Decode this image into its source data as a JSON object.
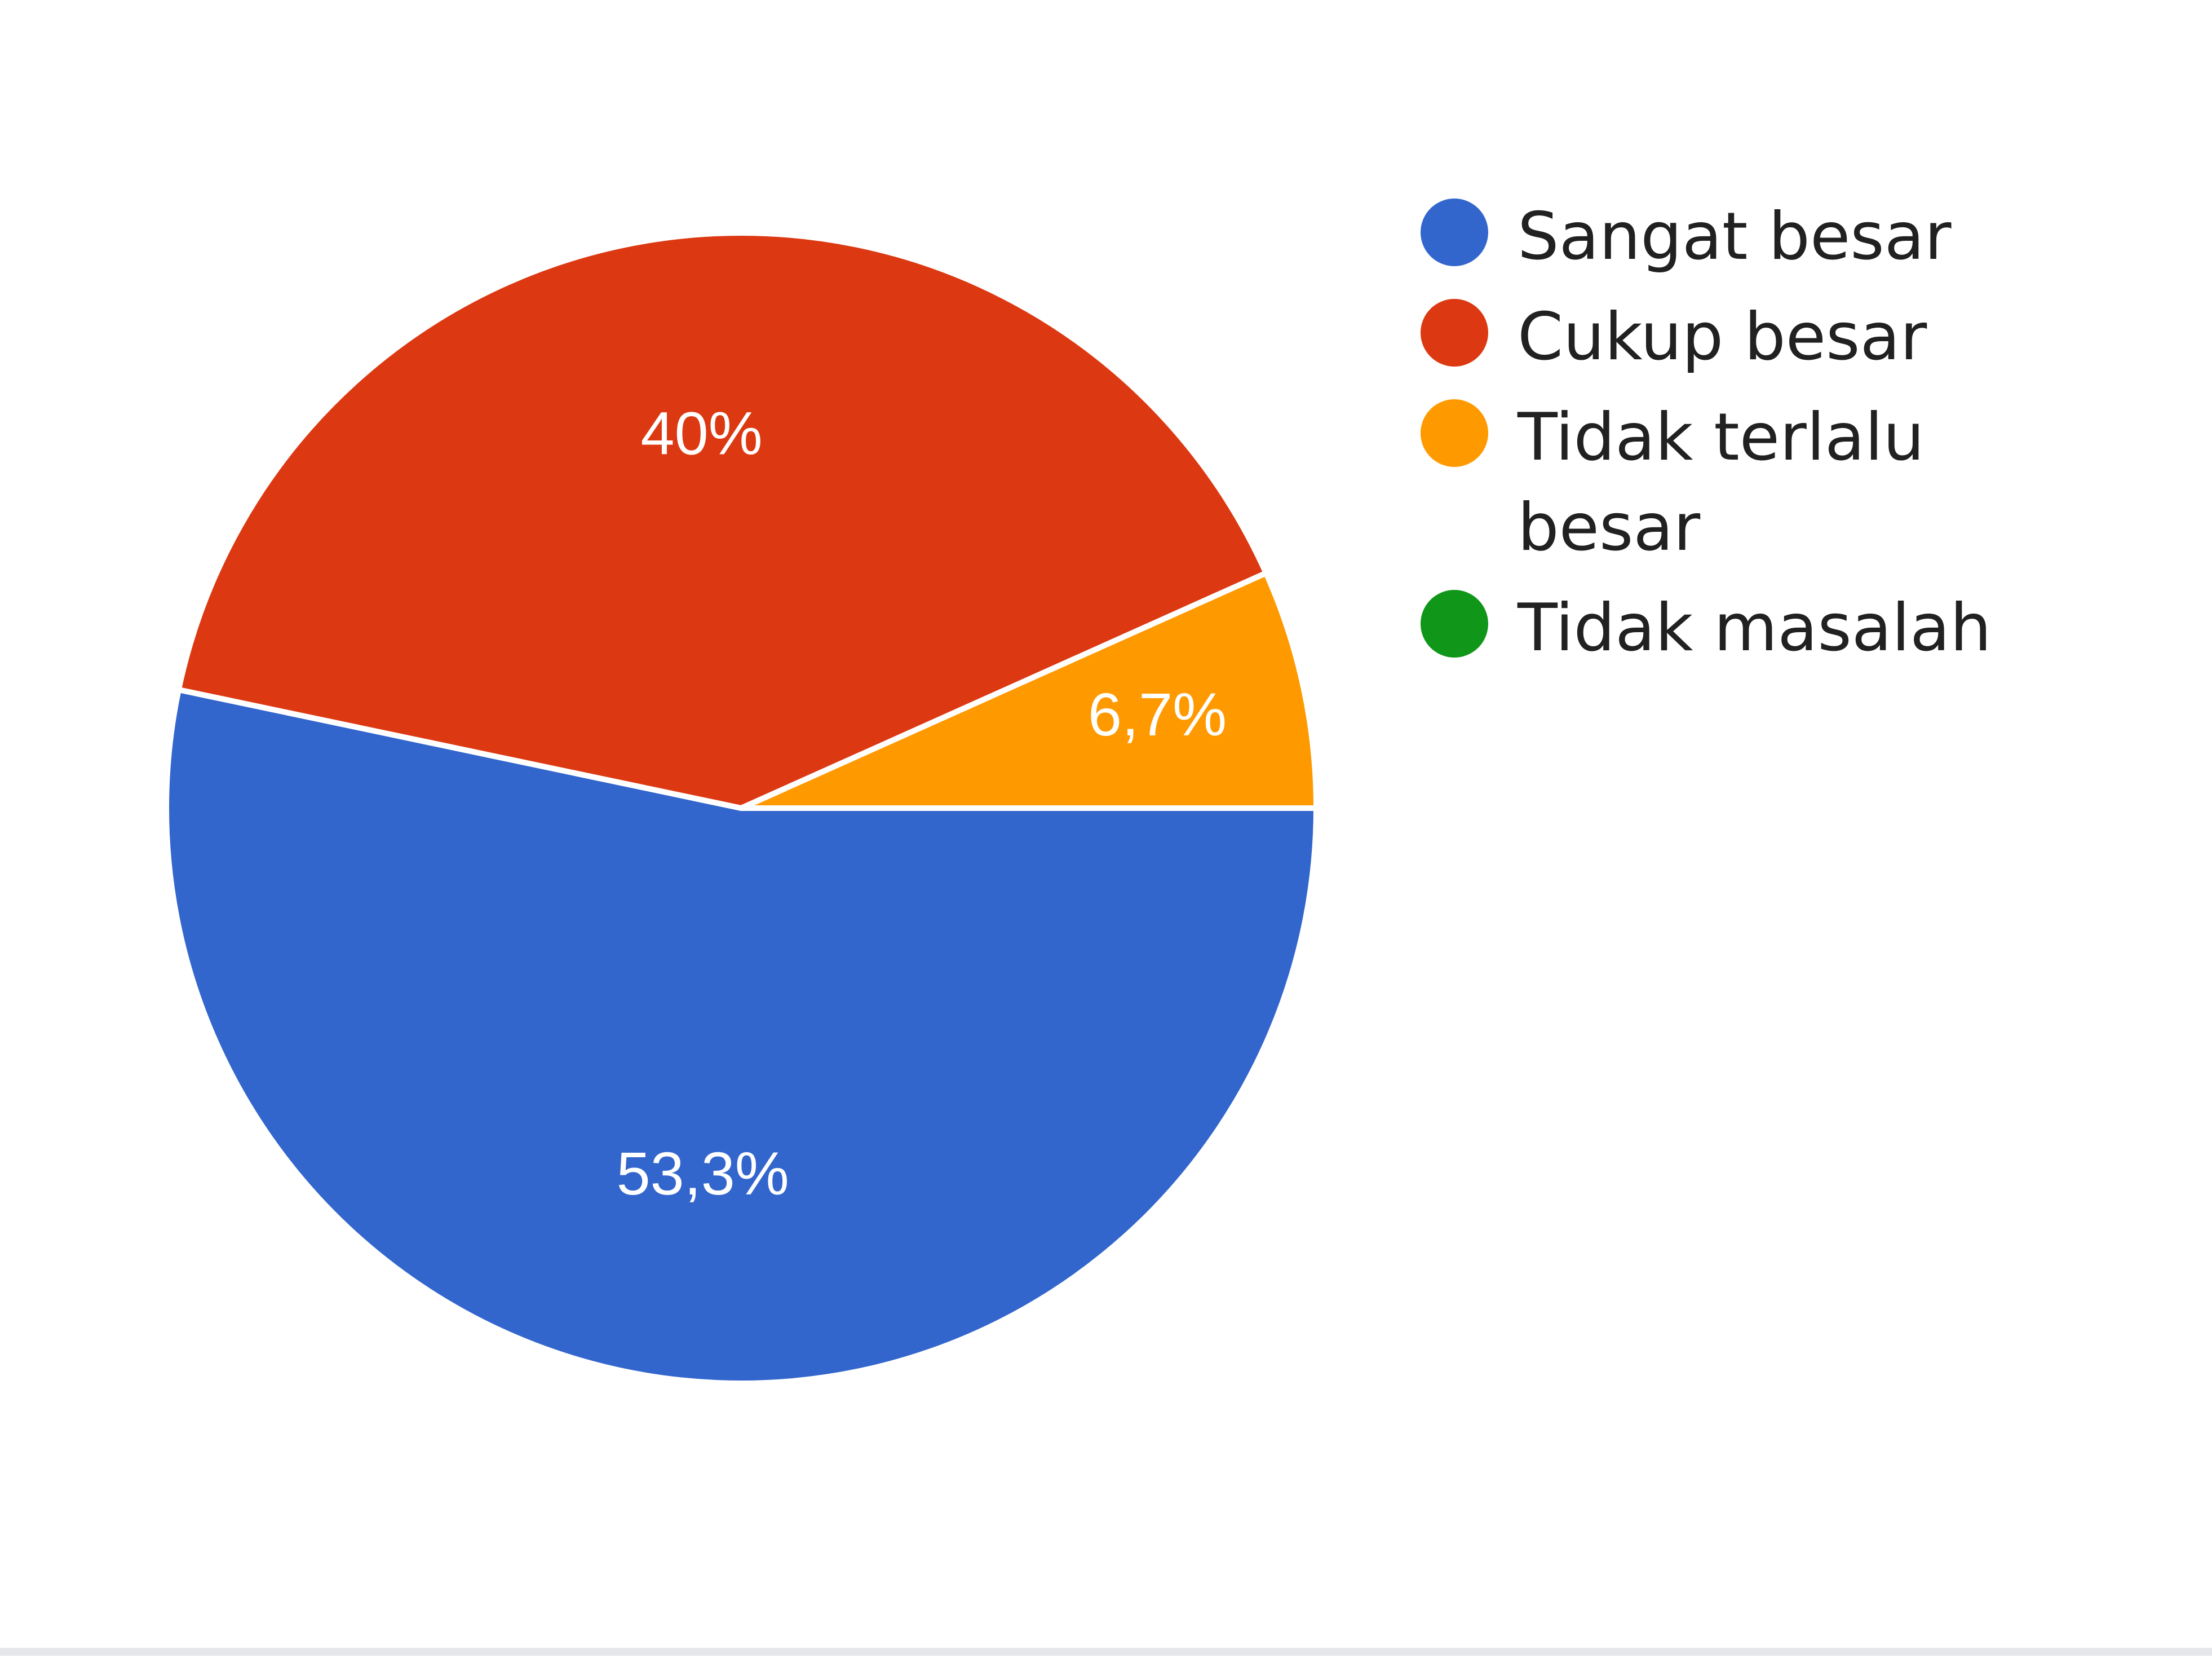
{
  "chart_data": {
    "type": "pie",
    "title": "",
    "start_angle_deg": 0,
    "series": [
      {
        "name": "Sangat besar",
        "value": 53.3,
        "label": "53,3%",
        "color": "#3366cc"
      },
      {
        "name": "Cukup besar",
        "value": 40.0,
        "label": "40%",
        "color": "#dc3912"
      },
      {
        "name": "Tidak terlalu besar",
        "value": 6.7,
        "label": "6,7%",
        "color": "#ff9900"
      },
      {
        "name": "Tidak masalah",
        "value": 0,
        "label": "",
        "color": "#109618"
      }
    ],
    "legend_position": "right"
  }
}
